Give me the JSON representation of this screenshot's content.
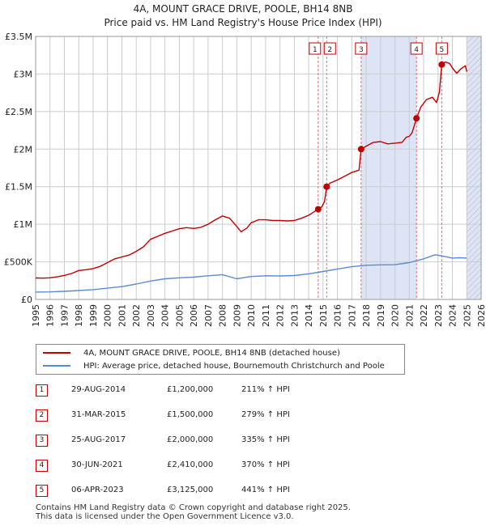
{
  "header": {
    "title": "4A, MOUNT GRACE DRIVE, POOLE, BH14 8NB",
    "subtitle": "Price paid vs. HM Land Registry's House Price Index (HPI)"
  },
  "colors": {
    "property_line": "#c00000",
    "hpi_line": "#5b8ccf",
    "marker_line": "#e07070",
    "shade": "#dde4f5",
    "grid": "#cccccc"
  },
  "chart_data": {
    "type": "line",
    "xlim": [
      1995,
      2026
    ],
    "ylim": [
      0,
      3500000
    ],
    "grid": true,
    "x_ticks": [
      1995,
      1996,
      1997,
      1998,
      1999,
      2000,
      2001,
      2002,
      2003,
      2004,
      2005,
      2006,
      2007,
      2008,
      2009,
      2010,
      2011,
      2012,
      2013,
      2014,
      2015,
      2016,
      2017,
      2018,
      2019,
      2020,
      2021,
      2022,
      2023,
      2024,
      2025,
      2026
    ],
    "y_ticks": [
      {
        "value": 0,
        "label": "£0"
      },
      {
        "value": 500000,
        "label": "£500K"
      },
      {
        "value": 1000000,
        "label": "£1M"
      },
      {
        "value": 1500000,
        "label": "£1.5M"
      },
      {
        "value": 2000000,
        "label": "£2M"
      },
      {
        "value": 2500000,
        "label": "£2.5M"
      },
      {
        "value": 3000000,
        "label": "£3M"
      },
      {
        "value": 3500000,
        "label": "£3.5M"
      }
    ],
    "shaded_regions": [
      [
        2017.65,
        2021.5
      ],
      [
        2025.0,
        2026.0
      ]
    ],
    "series": [
      {
        "name": "4A, MOUNT GRACE DRIVE, POOLE, BH14 8NB (detached house)",
        "color": "#c00000",
        "points": [
          [
            1995.0,
            285000
          ],
          [
            1995.5,
            283000
          ],
          [
            1996.0,
            288000
          ],
          [
            1996.5,
            300000
          ],
          [
            1997.0,
            320000
          ],
          [
            1997.5,
            345000
          ],
          [
            1998.0,
            385000
          ],
          [
            1998.5,
            395000
          ],
          [
            1999.0,
            410000
          ],
          [
            1999.5,
            440000
          ],
          [
            2000.0,
            490000
          ],
          [
            2000.5,
            540000
          ],
          [
            2001.0,
            565000
          ],
          [
            2001.5,
            590000
          ],
          [
            2002.0,
            640000
          ],
          [
            2002.5,
            700000
          ],
          [
            2003.0,
            800000
          ],
          [
            2003.5,
            840000
          ],
          [
            2004.0,
            880000
          ],
          [
            2004.5,
            910000
          ],
          [
            2005.0,
            940000
          ],
          [
            2005.5,
            955000
          ],
          [
            2006.0,
            945000
          ],
          [
            2006.5,
            960000
          ],
          [
            2007.0,
            1000000
          ],
          [
            2007.5,
            1060000
          ],
          [
            2008.0,
            1110000
          ],
          [
            2008.5,
            1080000
          ],
          [
            2009.0,
            970000
          ],
          [
            2009.3,
            900000
          ],
          [
            2009.7,
            950000
          ],
          [
            2010.0,
            1020000
          ],
          [
            2010.5,
            1060000
          ],
          [
            2011.0,
            1060000
          ],
          [
            2011.5,
            1050000
          ],
          [
            2012.0,
            1050000
          ],
          [
            2012.5,
            1045000
          ],
          [
            2013.0,
            1050000
          ],
          [
            2013.5,
            1080000
          ],
          [
            2014.0,
            1120000
          ],
          [
            2014.4,
            1170000
          ],
          [
            2014.66,
            1200000
          ],
          [
            2014.9,
            1230000
          ],
          [
            2015.1,
            1300000
          ],
          [
            2015.25,
            1500000
          ],
          [
            2015.5,
            1550000
          ],
          [
            2016.0,
            1590000
          ],
          [
            2016.5,
            1640000
          ],
          [
            2017.0,
            1690000
          ],
          [
            2017.5,
            1720000
          ],
          [
            2017.65,
            2000000
          ],
          [
            2018.0,
            2040000
          ],
          [
            2018.5,
            2090000
          ],
          [
            2019.0,
            2100000
          ],
          [
            2019.5,
            2070000
          ],
          [
            2020.0,
            2080000
          ],
          [
            2020.5,
            2090000
          ],
          [
            2020.8,
            2160000
          ],
          [
            2021.0,
            2170000
          ],
          [
            2021.2,
            2220000
          ],
          [
            2021.5,
            2410000
          ],
          [
            2021.8,
            2560000
          ],
          [
            2022.2,
            2660000
          ],
          [
            2022.6,
            2690000
          ],
          [
            2022.9,
            2620000
          ],
          [
            2023.1,
            2760000
          ],
          [
            2023.26,
            3125000
          ],
          [
            2023.5,
            3160000
          ],
          [
            2023.8,
            3140000
          ],
          [
            2024.0,
            3080000
          ],
          [
            2024.3,
            3010000
          ],
          [
            2024.6,
            3070000
          ],
          [
            2024.9,
            3110000
          ],
          [
            2025.0,
            3030000
          ]
        ]
      },
      {
        "name": "HPI: Average price, detached house, Bournemouth Christchurch and Poole",
        "color": "#5b8ccf",
        "points": [
          [
            1995.0,
            98000
          ],
          [
            1996.0,
            100000
          ],
          [
            1997.0,
            108000
          ],
          [
            1998.0,
            118000
          ],
          [
            1999.0,
            130000
          ],
          [
            2000.0,
            150000
          ],
          [
            2001.0,
            170000
          ],
          [
            2002.0,
            205000
          ],
          [
            2003.0,
            245000
          ],
          [
            2004.0,
            275000
          ],
          [
            2005.0,
            288000
          ],
          [
            2006.0,
            296000
          ],
          [
            2007.0,
            315000
          ],
          [
            2008.0,
            330000
          ],
          [
            2009.0,
            275000
          ],
          [
            2009.5,
            290000
          ],
          [
            2010.0,
            305000
          ],
          [
            2011.0,
            315000
          ],
          [
            2012.0,
            312000
          ],
          [
            2013.0,
            318000
          ],
          [
            2014.0,
            340000
          ],
          [
            2015.0,
            372000
          ],
          [
            2016.0,
            405000
          ],
          [
            2017.0,
            435000
          ],
          [
            2018.0,
            455000
          ],
          [
            2019.0,
            460000
          ],
          [
            2020.0,
            462000
          ],
          [
            2021.0,
            490000
          ],
          [
            2022.0,
            540000
          ],
          [
            2022.8,
            595000
          ],
          [
            2023.5,
            570000
          ],
          [
            2024.0,
            550000
          ],
          [
            2024.5,
            555000
          ],
          [
            2025.0,
            550000
          ]
        ]
      }
    ],
    "sales": [
      {
        "num": "1",
        "x": 2014.66,
        "y": 1200000
      },
      {
        "num": "2",
        "x": 2015.25,
        "y": 1500000
      },
      {
        "num": "3",
        "x": 2017.65,
        "y": 2000000
      },
      {
        "num": "4",
        "x": 2021.5,
        "y": 2410000
      },
      {
        "num": "5",
        "x": 2023.26,
        "y": 3125000
      }
    ]
  },
  "legend": {
    "property_label": "4A, MOUNT GRACE DRIVE, POOLE, BH14 8NB (detached house)",
    "hpi_label": "HPI: Average price, detached house, Bournemouth Christchurch and Poole"
  },
  "sales_table": [
    {
      "num": "1",
      "date": "29-AUG-2014",
      "price": "£1,200,000",
      "hpi": "211% ↑ HPI"
    },
    {
      "num": "2",
      "date": "31-MAR-2015",
      "price": "£1,500,000",
      "hpi": "279% ↑ HPI"
    },
    {
      "num": "3",
      "date": "25-AUG-2017",
      "price": "£2,000,000",
      "hpi": "335% ↑ HPI"
    },
    {
      "num": "4",
      "date": "30-JUN-2021",
      "price": "£2,410,000",
      "hpi": "370% ↑ HPI"
    },
    {
      "num": "5",
      "date": "06-APR-2023",
      "price": "£3,125,000",
      "hpi": "441% ↑ HPI"
    }
  ],
  "footer": {
    "line1": "Contains HM Land Registry data © Crown copyright and database right 2025.",
    "line2": "This data is licensed under the Open Government Licence v3.0."
  }
}
